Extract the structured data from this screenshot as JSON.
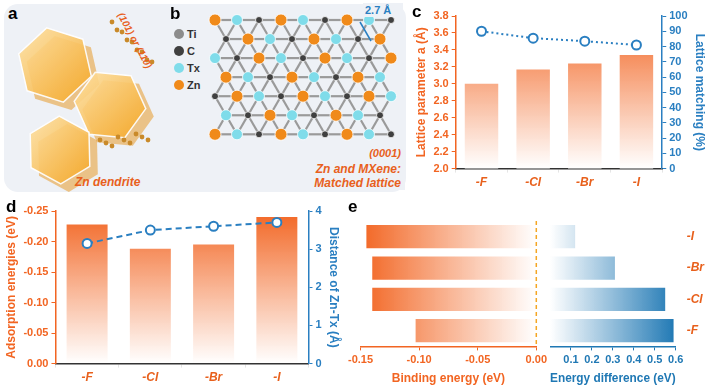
{
  "diagrams": [
    {
      "label": "a",
      "facet": "(101) or (110)",
      "caption": "Zn dendrite"
    },
    {
      "label": "b",
      "legend": [
        "Ti",
        "C",
        "Tx",
        "Zn"
      ],
      "distance": "2.7 Å",
      "facet": "(0001)",
      "caption": [
        "Zn and MXene:",
        "Matched lattice"
      ]
    }
  ],
  "chart_data": [
    {
      "type": "bar",
      "title": "c",
      "categories": [
        "-F",
        "-Cl",
        "-Br",
        "-I"
      ],
      "ylabel": "Lattice parameter a (Å)",
      "y2label": "Lattice matching (%)",
      "ylim": [
        2.0,
        3.8
      ],
      "yticks": [
        {
          "value": 2,
          "label": "2.0"
        },
        2.2,
        2.4,
        2.6,
        2.8,
        {
          "value": 3,
          "label": "3.0"
        },
        3.2,
        3.4,
        3.6,
        3.8
      ],
      "y2lim": [
        0,
        100
      ],
      "y2ticks": [
        0,
        10,
        20,
        30,
        40,
        50,
        60,
        70,
        80,
        90,
        100
      ],
      "series": [
        {
          "type": "bar",
          "color": "#f26522",
          "values": [
            3.0,
            3.17,
            3.24,
            3.34
          ]
        },
        {
          "type": "line",
          "axis": "y2",
          "color": "#2a7fc1",
          "marker": "circle",
          "line_style": "dotted",
          "values": [
            90,
            85.5,
            83.5,
            81
          ]
        }
      ],
      "grid": false
    },
    {
      "type": "bar",
      "title": "d",
      "categories": [
        "-F",
        "-Cl",
        "-Br",
        "-I"
      ],
      "ylabel": "Adsorption energies (eV)",
      "y2label": "Distance of Zn-Tx (Å)",
      "ylim": [
        0,
        -0.25
      ],
      "yticks": [
        {
          "value": 0,
          "label": "0.00"
        },
        -0.05,
        {
          "value": -0.1,
          "label": "-0.10"
        },
        -0.15,
        {
          "value": -0.2,
          "label": "-0.20"
        },
        -0.25
      ],
      "y2lim": [
        0,
        4
      ],
      "y2ticks": [
        0,
        1,
        2,
        3,
        4
      ],
      "series": [
        {
          "type": "bar",
          "color": "#f26522",
          "values": [
            -0.228,
            -0.188,
            -0.195,
            -0.24
          ]
        },
        {
          "type": "line",
          "axis": "y2",
          "color": "#2a7fc1",
          "marker": "circle",
          "line_style": "dashed",
          "values": [
            3.15,
            3.5,
            3.6,
            3.7
          ]
        }
      ],
      "grid": false
    },
    {
      "type": "bar",
      "orientation": "horizontal",
      "title": "e",
      "categories": [
        "-I",
        "-Br",
        "-Cl",
        "-F"
      ],
      "xlabel": "Binding energy (eV)",
      "xlim": [
        -0.15,
        0
      ],
      "xticks": [
        -0.15,
        {
          "value": -0.1,
          "label": "-0.10"
        },
        -0.05,
        {
          "value": 0,
          "label": "0.00"
        }
      ],
      "values": [
        -0.145,
        -0.14,
        -0.14,
        -0.103
      ],
      "color": "#f26522",
      "tick_labels": "x",
      "grid": false
    },
    {
      "type": "bar",
      "orientation": "horizontal",
      "categories": [
        "-I",
        "-Br",
        "-Cl",
        "-F"
      ],
      "xlabel": "Energy difference (eV)",
      "xlim": [
        0,
        0.6
      ],
      "xticks": [
        0.1,
        0.2,
        0.3,
        0.4,
        0.5,
        0.6
      ],
      "values": [
        0.12,
        0.31,
        0.55,
        0.59
      ],
      "color": "#1f78b4",
      "grid": false
    }
  ]
}
